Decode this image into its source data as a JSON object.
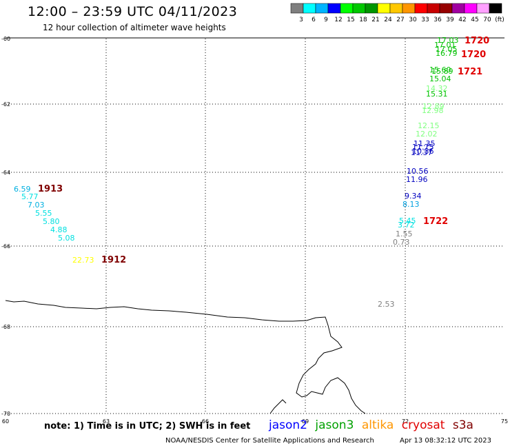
{
  "title": "12:00 – 23:59 UTC 04/11/2023",
  "subtitle": "12 hour collection of altimeter wave heights",
  "colorbar": {
    "labels": [
      "3",
      "6",
      "9",
      "12",
      "15",
      "18",
      "21",
      "24",
      "27",
      "30",
      "33",
      "36",
      "39",
      "42",
      "45",
      "70",
      "(ft)"
    ],
    "colors": [
      "#7f7f7f",
      "#00ffff",
      "#00b4ff",
      "#0000ff",
      "#00ff00",
      "#00c800",
      "#009600",
      "#ffff00",
      "#ffc800",
      "#ff9600",
      "#ff0000",
      "#c80000",
      "#960000",
      "#a000a0",
      "#ff00ff",
      "#ffa0ff",
      "#000000"
    ]
  },
  "axes": {
    "x_ticks": [
      "60",
      "63",
      "66",
      "69",
      "72",
      "75"
    ],
    "y_ticks": [
      "-60",
      "-62",
      "-64",
      "-66",
      "-68",
      "-70"
    ]
  },
  "passes": [
    {
      "label": "1720",
      "color": "#e00000"
    },
    {
      "label": "1720",
      "color": "#e00000"
    },
    {
      "label": "1721",
      "color": "#e00000"
    },
    {
      "label": "1722",
      "color": "#e00000"
    },
    {
      "label": "1913",
      "color": "#800000"
    },
    {
      "label": "1912",
      "color": "#800000"
    }
  ],
  "wave_values": [
    {
      "v": "17.03",
      "color": "#00c000"
    },
    {
      "v": "17.01",
      "color": "#00c000"
    },
    {
      "v": "17.05",
      "color": "#00c000"
    },
    {
      "v": "16.79",
      "color": "#00c000"
    },
    {
      "v": "15.60",
      "color": "#00c000"
    },
    {
      "v": "15.89",
      "color": "#00c000"
    },
    {
      "v": "15.04",
      "color": "#00c000"
    },
    {
      "v": "14.32",
      "color": "#80ff80"
    },
    {
      "v": "15.31",
      "color": "#00c000"
    },
    {
      "v": "12.89",
      "color": "#80ff80"
    },
    {
      "v": "12.98",
      "color": "#80ff80"
    },
    {
      "v": "12.15",
      "color": "#80ff80"
    },
    {
      "v": "12.02",
      "color": "#80ff80"
    },
    {
      "v": "11.35",
      "color": "#0000c0"
    },
    {
      "v": "11.75",
      "color": "#0000c0"
    },
    {
      "v": "10.36",
      "color": "#0000c0"
    },
    {
      "v": "11.37",
      "color": "#0000c0"
    },
    {
      "v": "10.56",
      "color": "#0000c0"
    },
    {
      "v": "11.96",
      "color": "#0000c0"
    },
    {
      "v": "9.34",
      "color": "#0000c0"
    },
    {
      "v": "8.13",
      "color": "#00a0e0"
    },
    {
      "v": "5.45",
      "color": "#00e0e0"
    },
    {
      "v": "3.72",
      "color": "#00e0e0"
    },
    {
      "v": "1.55",
      "color": "#808080"
    },
    {
      "v": "0.73",
      "color": "#808080"
    },
    {
      "v": "6.59",
      "color": "#00b0e0"
    },
    {
      "v": "5.77",
      "color": "#00e0e0"
    },
    {
      "v": "7.03",
      "color": "#00b0e0"
    },
    {
      "v": "5.55",
      "color": "#00e0e0"
    },
    {
      "v": "5.80",
      "color": "#00e0e0"
    },
    {
      "v": "4.88",
      "color": "#00e0e0"
    },
    {
      "v": "5.08",
      "color": "#00e0e0"
    },
    {
      "v": "22.73",
      "color": "#ffff00"
    },
    {
      "v": "2.53",
      "color": "#808080"
    }
  ],
  "note": "note: 1) Time is in UTC; 2) SWH is in feet",
  "legend": [
    {
      "name": "jason2",
      "color": "#0000ff"
    },
    {
      "name": "jason3",
      "color": "#00a000"
    },
    {
      "name": "altika",
      "color": "#ff9600"
    },
    {
      "name": "cryosat",
      "color": "#e00000"
    },
    {
      "name": "s3a",
      "color": "#800000"
    }
  ],
  "credit": "NOAA/NESDIS Center for Satellite Applications and Research",
  "timestamp": "Apr 13 08:32:12 UTC 2023"
}
